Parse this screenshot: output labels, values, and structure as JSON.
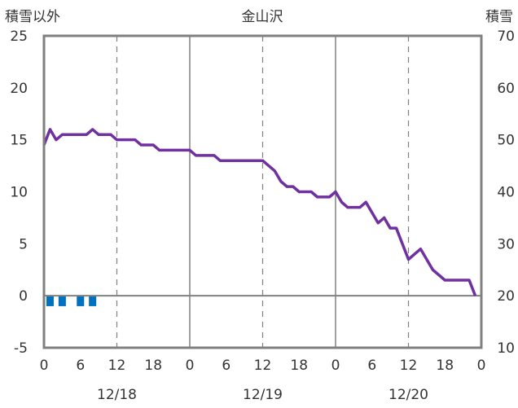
{
  "chart_data": {
    "type": "line",
    "title": "金山沢",
    "left_axis_label": "積雪以外",
    "right_axis_label": "積雪",
    "y_left_range": [
      -5,
      25
    ],
    "y_left_ticks": [
      "25",
      "20",
      "15",
      "10",
      "5",
      "0",
      "-5"
    ],
    "y_right_range": [
      10,
      70
    ],
    "y_right_ticks": [
      "70",
      "60",
      "50",
      "40",
      "30",
      "20",
      "10"
    ],
    "x_range_hours": [
      0,
      72
    ],
    "x_tick_labels": [
      "0",
      "6",
      "12",
      "18",
      "0",
      "6",
      "12",
      "18",
      "0",
      "6",
      "12",
      "18",
      "0"
    ],
    "date_labels": [
      "12/18",
      "12/19",
      "12/20"
    ],
    "grid": "dashed vertical every 12 h, solid at 0 h and 24 h",
    "colors": {
      "line": "#7030a0",
      "bars": "#0070c0",
      "axis": "#808080"
    },
    "series": [
      {
        "axis": "right",
        "hours": [
          0,
          1,
          2,
          3,
          4,
          5,
          6,
          7,
          8,
          9,
          10,
          11,
          12,
          13,
          14,
          15,
          16,
          17,
          18,
          19,
          20,
          21,
          22,
          23,
          24,
          25,
          26,
          27,
          28,
          29,
          30,
          31,
          32,
          33,
          34,
          35,
          36,
          37,
          38,
          39,
          40,
          41,
          42,
          43,
          44,
          45,
          46,
          47,
          48,
          49,
          50,
          51,
          52,
          53,
          54,
          55,
          56,
          57,
          58,
          59,
          60,
          61,
          62,
          63,
          64,
          65,
          66,
          67,
          68,
          69,
          70,
          71
        ],
        "values": [
          49,
          52,
          50,
          51,
          51,
          51,
          51,
          51,
          52,
          51,
          51,
          51,
          50,
          50,
          50,
          50,
          49,
          49,
          49,
          48,
          48,
          48,
          48,
          48,
          48,
          47,
          47,
          47,
          47,
          46,
          46,
          46,
          46,
          46,
          46,
          46,
          46,
          45,
          44,
          42,
          41,
          41,
          40,
          40,
          40,
          39,
          39,
          39,
          40,
          38,
          37,
          37,
          37,
          38,
          36,
          34,
          35,
          33,
          33,
          30,
          27,
          28,
          29,
          27,
          25,
          24,
          23,
          23,
          23,
          23,
          23,
          20
        ]
      },
      {
        "axis": "left",
        "type": "bar",
        "hours": [
          1,
          3,
          6,
          8
        ],
        "values": [
          -1,
          -1,
          -1,
          -1
        ]
      }
    ]
  }
}
